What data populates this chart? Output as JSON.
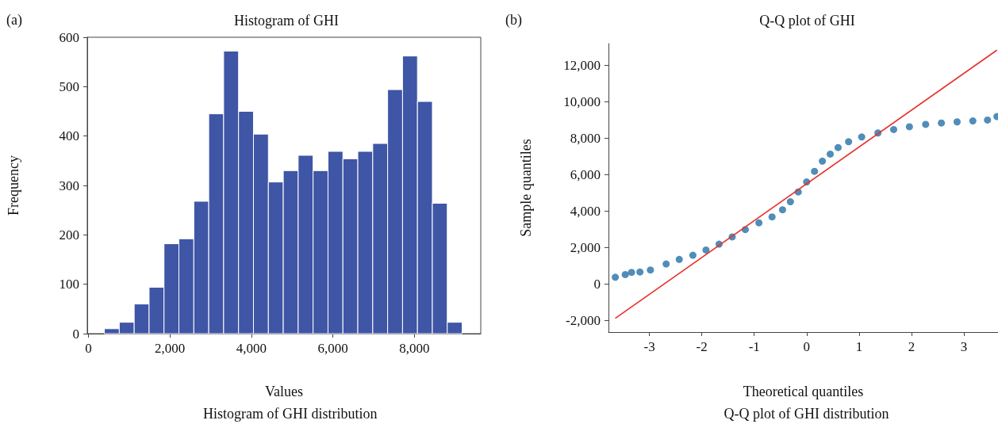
{
  "chart_data": [
    {
      "type": "histogram",
      "title": "Histogram of GHI",
      "xlabel": "Values",
      "ylabel": "Frequency",
      "annotations": [
        "(a)",
        "Histogram of GHI distribution"
      ],
      "color": "#3f55a5",
      "bins": [
        390,
        756,
        1122,
        1488,
        1854,
        2220,
        2586,
        2952,
        3318,
        3684,
        4050,
        4416,
        4782,
        5148,
        5514,
        5880,
        6246,
        6612,
        6978,
        7344,
        7710,
        8076,
        8442,
        8808,
        9174
      ],
      "values": [
        10,
        23,
        60,
        94,
        182,
        192,
        268,
        445,
        572,
        450,
        404,
        307,
        330,
        361,
        330,
        369,
        354,
        369,
        385,
        494,
        562,
        470,
        264,
        23
      ],
      "xlim": [
        -30,
        9630
      ],
      "xticks": [
        0,
        {
          "value": 2000,
          "label": "2,000"
        },
        {
          "value": 4000,
          "label": "4,000"
        },
        {
          "value": 6000,
          "label": "6,000"
        },
        {
          "value": 8000,
          "label": "8,000"
        }
      ],
      "ylim": [
        0,
        600
      ],
      "yticks": [
        0,
        100,
        200,
        300,
        400,
        500,
        600
      ]
    },
    {
      "type": "scatter",
      "title": "Q-Q plot of GHI",
      "xlabel": "Theoretical quantiles",
      "ylabel": "Sample quantiles",
      "annotations": [
        "(b)",
        "Q-Q plot of GHI distribution"
      ],
      "series": [
        {
          "type": "scatter",
          "marker": "circle",
          "color": "#2471a8",
          "x": [
            -3.65,
            -3.46,
            -3.34,
            -3.18,
            -2.98,
            -2.68,
            -2.43,
            -2.17,
            -1.92,
            -1.67,
            -1.42,
            -1.17,
            -0.91,
            -0.66,
            -0.46,
            -0.31,
            -0.16,
            0.0,
            0.15,
            0.3,
            0.45,
            0.6,
            0.8,
            1.05,
            1.36,
            1.66,
            1.96,
            2.27,
            2.57,
            2.87,
            3.17,
            3.45,
            3.63
          ],
          "values": [
            360,
            510,
            630,
            650,
            760,
            1090,
            1340,
            1570,
            1860,
            2180,
            2580,
            2980,
            3350,
            3680,
            4070,
            4510,
            5050,
            5600,
            6180,
            6740,
            7130,
            7490,
            7810,
            8070,
            8290,
            8480,
            8630,
            8760,
            8840,
            8900,
            8950,
            9000,
            9190
          ]
        },
        {
          "type": "line",
          "marker": "none",
          "color": "#e8302a",
          "x": [
            -3.65,
            3.63
          ],
          "values": [
            -1890,
            12840
          ]
        }
      ],
      "xlim": [
        -3.78,
        3.65
      ],
      "xticks": [
        -3,
        -2,
        -1,
        0,
        1,
        2,
        3
      ],
      "ylim": [
        -2650,
        13200
      ],
      "yticks": [
        {
          "value": -2000,
          "label": "-2,000"
        },
        0,
        {
          "value": 2000,
          "label": "2,000"
        },
        {
          "value": 4000,
          "label": "4,000"
        },
        {
          "value": 6000,
          "label": "6,000"
        },
        {
          "value": 8000,
          "label": "8,000"
        },
        {
          "value": 10000,
          "label": "10,000"
        },
        {
          "value": 12000,
          "label": "12,000"
        }
      ]
    }
  ]
}
